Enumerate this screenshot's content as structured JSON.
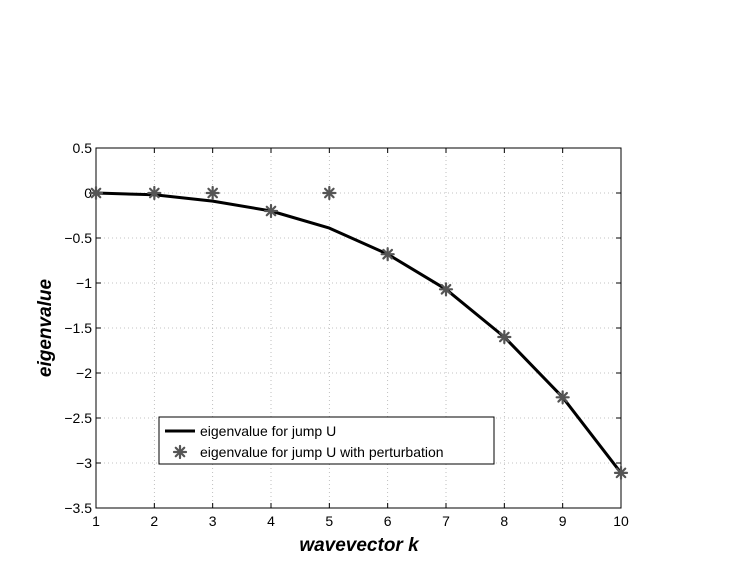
{
  "chart_data": {
    "type": "line",
    "title": "",
    "xlabel": "wavevector k",
    "ylabel": "eigenvalue",
    "xlim": [
      1,
      10
    ],
    "ylim": [
      -3.5,
      0.5
    ],
    "grid": true,
    "legend_position": "bottom-left",
    "x_ticks": [
      "1",
      "2",
      "3",
      "4",
      "5",
      "6",
      "7",
      "8",
      "9",
      "10"
    ],
    "y_ticks": [
      "0.5",
      "0",
      "−0.5",
      "−1",
      "−1.5",
      "−2",
      "−2.5",
      "−3",
      "−3.5"
    ],
    "series": [
      {
        "name": "eigenvalue for jump U",
        "style": "line",
        "color": "#000000",
        "x": [
          1,
          2,
          3,
          4,
          5,
          6,
          7,
          8,
          9,
          10
        ],
        "y": [
          0.0,
          -0.02,
          -0.09,
          -0.2,
          -0.39,
          -0.68,
          -1.07,
          -1.6,
          -2.27,
          -3.11
        ]
      },
      {
        "name": "eigenvalue for jump U with perturbation",
        "style": "marker",
        "marker": "asterisk",
        "color": "#555555",
        "x": [
          1,
          2,
          3,
          4,
          5,
          6,
          7,
          8,
          9,
          10
        ],
        "y": [
          0.0,
          0.0,
          0.0,
          -0.2,
          0.0,
          -0.68,
          -1.07,
          -1.6,
          -2.27,
          -3.11
        ]
      }
    ]
  }
}
